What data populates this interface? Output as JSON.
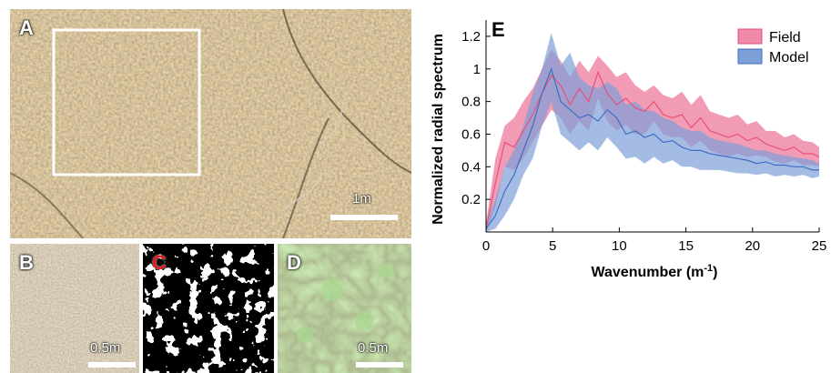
{
  "panels": {
    "A": {
      "letter": "A",
      "scale_label": "1m"
    },
    "B": {
      "letter": "B",
      "scale_label": "0.5m"
    },
    "C": {
      "letter": "C"
    },
    "D": {
      "letter": "D",
      "scale_label": "0.5m"
    },
    "E": {
      "letter": "E"
    }
  },
  "colors": {
    "field": "#e8507a",
    "field_band": "#f08aa8",
    "model": "#3f6fc0",
    "model_band": "#7d9fd8",
    "letter_c": "#e01b24"
  },
  "chart_data": {
    "type": "line",
    "xlabel": "Wavenumber (m",
    "xlabel_sup": "-1",
    "xlabel_tail": ")",
    "ylabel": "Normalized radial spectrum",
    "xlim": [
      0,
      25
    ],
    "ylim": [
      0,
      1.3
    ],
    "xticks": [
      0,
      5,
      10,
      15,
      20,
      25
    ],
    "yticks": [
      0.2,
      0.4,
      0.6,
      0.8,
      1,
      1.2
    ],
    "ytick_labels": [
      "0.2",
      "0.4",
      "0.6",
      "0.8",
      "1",
      "1.2"
    ],
    "legend_position": "top-right",
    "series": [
      {
        "name": "Field",
        "x": [
          0,
          0.7,
          1.4,
          2.1,
          2.8,
          3.5,
          4.2,
          4.9,
          5.6,
          6.3,
          7.0,
          7.7,
          8.4,
          9.1,
          9.8,
          10.5,
          11.2,
          11.9,
          12.6,
          13.3,
          14.0,
          14.7,
          15.4,
          16.1,
          16.8,
          17.5,
          18.2,
          18.9,
          19.6,
          20.3,
          21.0,
          21.7,
          22.4,
          23.1,
          23.8,
          24.5,
          25
        ],
        "mean": [
          0.02,
          0.3,
          0.55,
          0.52,
          0.62,
          0.72,
          0.85,
          0.96,
          0.9,
          0.78,
          0.88,
          0.8,
          0.98,
          0.85,
          0.78,
          0.82,
          0.76,
          0.74,
          0.8,
          0.72,
          0.7,
          0.72,
          0.64,
          0.7,
          0.62,
          0.6,
          0.58,
          0.6,
          0.56,
          0.58,
          0.54,
          0.52,
          0.5,
          0.52,
          0.48,
          0.48,
          0.46
        ],
        "upper": [
          0.05,
          0.45,
          0.65,
          0.7,
          0.8,
          0.88,
          1.0,
          1.12,
          1.05,
          0.95,
          1.05,
          0.98,
          1.08,
          1.02,
          0.95,
          0.98,
          0.9,
          0.86,
          0.9,
          0.84,
          0.82,
          0.86,
          0.78,
          0.84,
          0.74,
          0.72,
          0.7,
          0.72,
          0.66,
          0.68,
          0.62,
          0.62,
          0.58,
          0.6,
          0.56,
          0.55,
          0.52
        ],
        "lower": [
          0.0,
          0.15,
          0.4,
          0.38,
          0.45,
          0.55,
          0.65,
          0.75,
          0.7,
          0.6,
          0.68,
          0.62,
          0.82,
          0.68,
          0.62,
          0.66,
          0.6,
          0.6,
          0.68,
          0.6,
          0.58,
          0.58,
          0.52,
          0.56,
          0.5,
          0.48,
          0.46,
          0.48,
          0.46,
          0.47,
          0.46,
          0.43,
          0.42,
          0.44,
          0.41,
          0.41,
          0.4
        ]
      },
      {
        "name": "Model",
        "x": [
          0,
          0.7,
          1.4,
          2.1,
          2.8,
          3.5,
          4.2,
          4.9,
          5.6,
          6.3,
          7.0,
          7.7,
          8.4,
          9.1,
          9.8,
          10.5,
          11.2,
          11.9,
          12.6,
          13.3,
          14.0,
          14.7,
          15.4,
          16.1,
          16.8,
          17.5,
          18.2,
          18.9,
          19.6,
          20.3,
          21.0,
          21.7,
          22.4,
          23.1,
          23.8,
          24.5,
          25
        ],
        "mean": [
          0.02,
          0.1,
          0.25,
          0.35,
          0.5,
          0.65,
          0.85,
          1.0,
          0.8,
          0.75,
          0.7,
          0.72,
          0.68,
          0.75,
          0.7,
          0.6,
          0.62,
          0.58,
          0.6,
          0.55,
          0.56,
          0.52,
          0.5,
          0.5,
          0.48,
          0.47,
          0.46,
          0.45,
          0.44,
          0.42,
          0.43,
          0.41,
          0.41,
          0.4,
          0.4,
          0.38,
          0.38
        ],
        "upper": [
          0.05,
          0.2,
          0.4,
          0.5,
          0.65,
          0.85,
          1.0,
          1.22,
          1.02,
          1.1,
          0.95,
          0.9,
          0.88,
          0.92,
          0.88,
          0.78,
          0.8,
          0.75,
          0.74,
          0.7,
          0.68,
          0.64,
          0.62,
          0.62,
          0.58,
          0.56,
          0.55,
          0.54,
          0.52,
          0.5,
          0.5,
          0.48,
          0.47,
          0.46,
          0.45,
          0.44,
          0.42
        ],
        "lower": [
          0.0,
          0.02,
          0.1,
          0.2,
          0.35,
          0.45,
          0.65,
          0.8,
          0.6,
          0.55,
          0.5,
          0.55,
          0.5,
          0.58,
          0.52,
          0.45,
          0.46,
          0.42,
          0.46,
          0.42,
          0.44,
          0.4,
          0.4,
          0.38,
          0.38,
          0.38,
          0.37,
          0.36,
          0.36,
          0.35,
          0.36,
          0.34,
          0.35,
          0.34,
          0.35,
          0.33,
          0.34
        ]
      }
    ]
  }
}
